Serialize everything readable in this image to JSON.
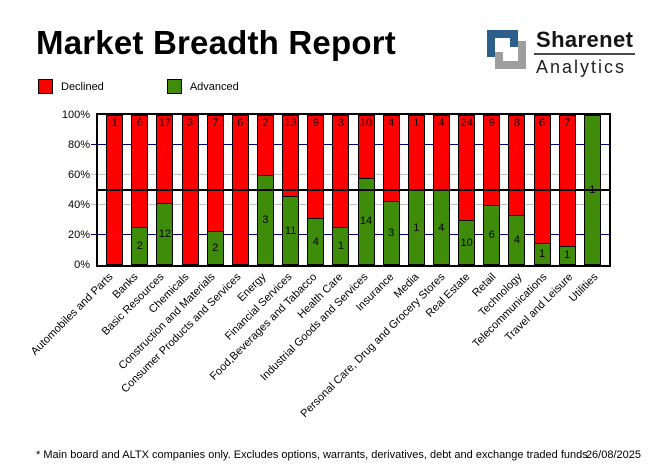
{
  "header": {
    "title": "Market Breadth Report"
  },
  "logo": {
    "name": "Sharenet",
    "division": "Analytics",
    "icon": "sharenet-square-s-icon",
    "blue": "#2d5f8a",
    "gray": "#9e9e9e"
  },
  "legend": [
    {
      "label": "Declined",
      "color": "#ff0000"
    },
    {
      "label": "Advanced",
      "color": "#3e8c0a"
    }
  ],
  "chart_data": {
    "type": "bar",
    "stacked": true,
    "normalized_to_percent": true,
    "title": "Market Breadth Report",
    "categories": [
      "Automobiles and Parts",
      "Banks",
      "Basic Resources",
      "Chemicals",
      "Construction and Materials",
      "Consumer Products and Services",
      "Energy",
      "Financial Services",
      "Food,Beverages and Tabacco",
      "Health Care",
      "Industrial Goods and Services",
      "Insurance",
      "Media",
      "Personal Care, Drug and Grocery Stores",
      "Real Estate",
      "Retail",
      "Technology",
      "Telecommunications",
      "Travel and Leisure",
      "Utilities"
    ],
    "series": [
      {
        "name": "Declined",
        "color": "#ff0000",
        "values": [
          1,
          6,
          17,
          3,
          7,
          6,
          2,
          13,
          9,
          3,
          10,
          4,
          1,
          4,
          24,
          9,
          8,
          6,
          7,
          0
        ]
      },
      {
        "name": "Advanced",
        "color": "#3e8c0a",
        "values": [
          0,
          2,
          12,
          0,
          2,
          0,
          3,
          11,
          4,
          1,
          14,
          3,
          1,
          4,
          10,
          6,
          4,
          1,
          1,
          1
        ]
      }
    ],
    "y_ticks": [
      "100%",
      "80%",
      "60%",
      "40%",
      "20%",
      "0%"
    ],
    "ylim": [
      0,
      100
    ],
    "grid": true,
    "gridlines": [
      {
        "level": 80,
        "color": "#000080"
      },
      {
        "level": 60,
        "color": "#c0c0c0"
      },
      {
        "level": 40,
        "color": "#c0c0c0"
      },
      {
        "level": 20,
        "color": "#000080"
      }
    ],
    "reference_line_percent": 50,
    "legend_position": "top-left",
    "bar_value_labels": true
  },
  "footer": {
    "note": "* Main board and ALTX companies only. Excludes options, warrants, derivatives, debt and exchange traded funds",
    "date": "26/08/2025"
  }
}
